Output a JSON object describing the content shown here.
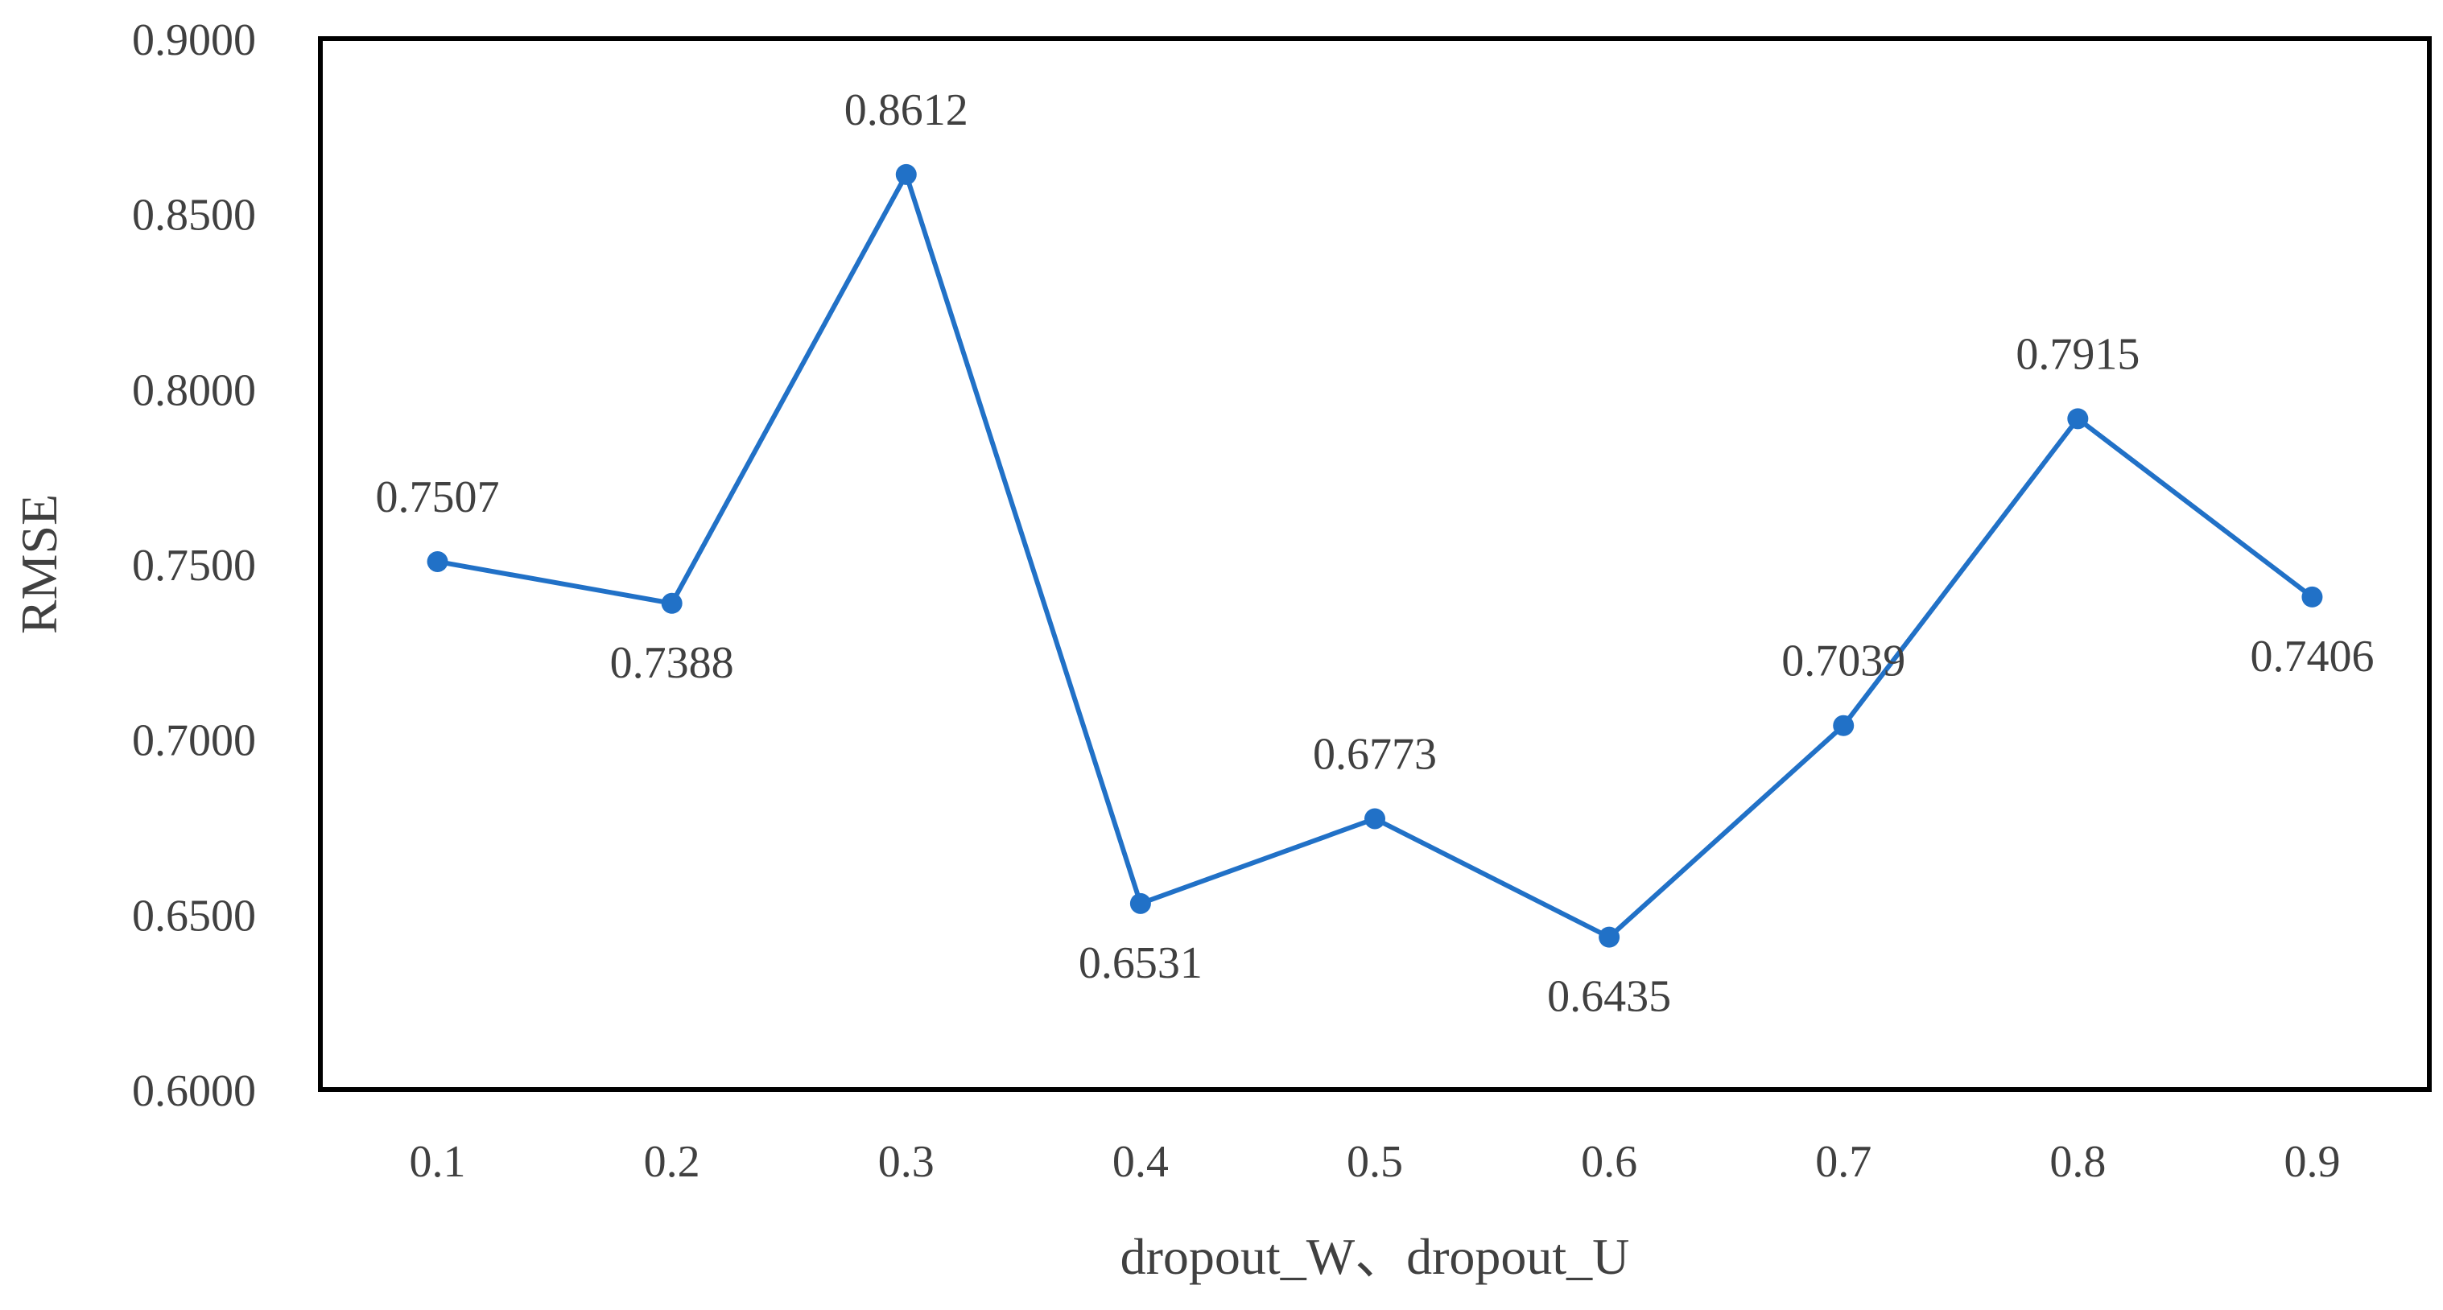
{
  "chart_data": {
    "type": "line",
    "title": "",
    "xlabel": "dropout_W、dropout_U",
    "ylabel": "RMSE",
    "categories": [
      "0.1",
      "0.2",
      "0.3",
      "0.4",
      "0.5",
      "0.6",
      "0.7",
      "0.8",
      "0.9"
    ],
    "series": [
      {
        "values": [
          0.7507,
          0.7388,
          0.8612,
          0.6531,
          0.6773,
          0.6435,
          0.7039,
          0.7915,
          0.7406
        ],
        "data_labels": [
          "0.7507",
          "0.7388",
          "0.8612",
          "0.6531",
          "0.6773",
          "0.6435",
          "0.7039",
          "0.7915",
          "0.7406"
        ],
        "color": "#2171C7"
      }
    ],
    "ylim": [
      0.6,
      0.9
    ],
    "y_ticks": [
      "0.6000",
      "0.6500",
      "0.7000",
      "0.7500",
      "0.8000",
      "0.8500",
      "0.9000"
    ],
    "grid": false,
    "legend": "none",
    "frame_color": "#000000"
  }
}
